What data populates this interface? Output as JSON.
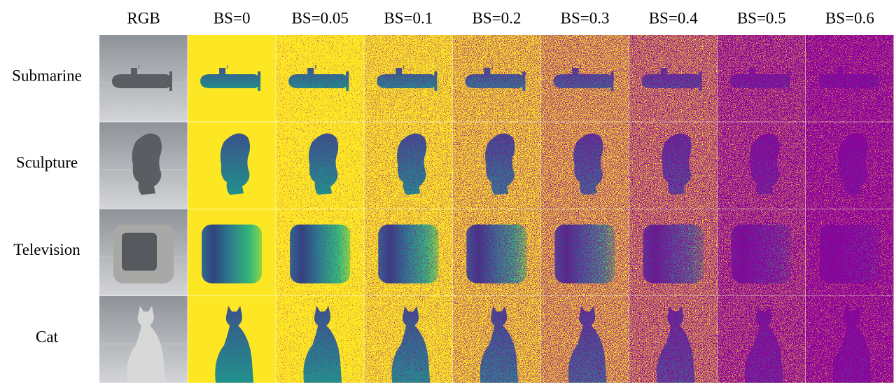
{
  "columns": [
    "RGB",
    "BS=0",
    "BS=0.05",
    "BS=0.1",
    "BS=0.2",
    "BS=0.3",
    "BS=0.4",
    "BS=0.5",
    "BS=0.6"
  ],
  "rows": [
    "Submarine",
    "Sculpture",
    "Television",
    "Cat"
  ]
}
